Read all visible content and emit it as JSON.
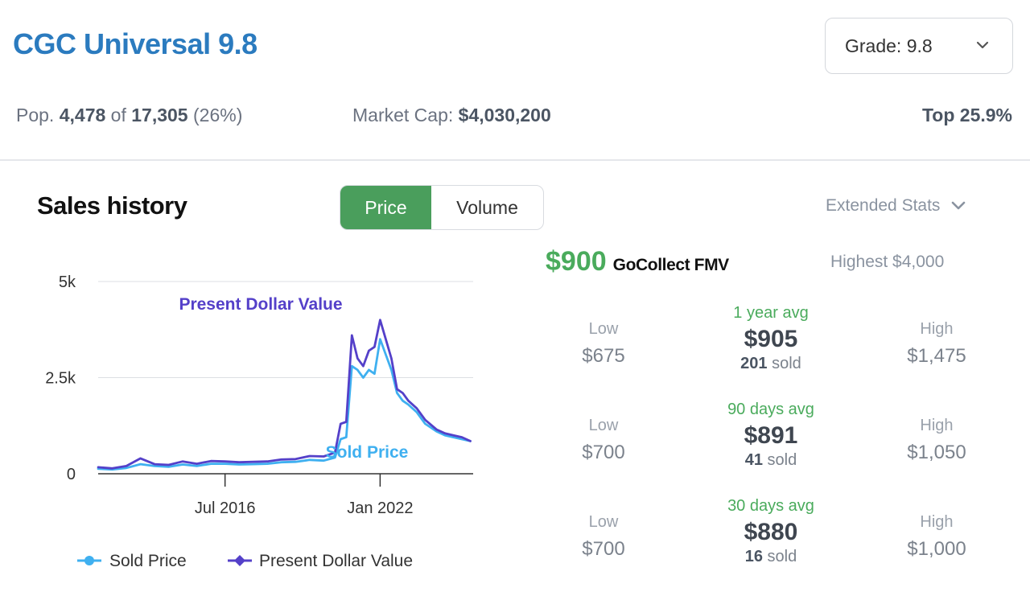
{
  "header": {
    "title": "CGC Universal 9.8",
    "grade_select": "Grade: 9.8"
  },
  "stats": {
    "pop_label": "Pop.",
    "pop_count": "4,478",
    "pop_of": "of",
    "pop_total": "17,305",
    "pop_pct": "(26%)",
    "market_cap_label": "Market Cap:",
    "market_cap_value": "$4,030,200",
    "top": "Top 25.9%"
  },
  "sales": {
    "title": "Sales history",
    "toggle": {
      "price": "Price",
      "volume": "Volume",
      "active": "Price"
    },
    "extended_stats": "Extended Stats"
  },
  "fmv": {
    "value": "$900",
    "label": "GoCollect FMV",
    "highest": "Highest $4,000"
  },
  "periods": [
    {
      "low_label": "Low",
      "low": "$675",
      "avg_label": "1 year avg",
      "avg": "$905",
      "sold_count": "201",
      "sold_word": "sold",
      "high_label": "High",
      "high": "$1,475"
    },
    {
      "low_label": "Low",
      "low": "$700",
      "avg_label": "90 days avg",
      "avg": "$891",
      "sold_count": "41",
      "sold_word": "sold",
      "high_label": "High",
      "high": "$1,050"
    },
    {
      "low_label": "Low",
      "low": "$700",
      "avg_label": "30 days avg",
      "avg": "$880",
      "sold_count": "16",
      "sold_word": "sold",
      "high_label": "High",
      "high": "$1,000"
    }
  ],
  "colors": {
    "sold_price": "#3fb0f0",
    "present_value": "#5440c9",
    "green": "#4aab5c",
    "title_blue": "#2b7bbf"
  },
  "chart_data": {
    "type": "line",
    "x_type": "year",
    "xlim": [
      2012.0,
      2025.3
    ],
    "ylim": [
      0,
      5000
    ],
    "y_ticks": [
      0,
      2500,
      5000
    ],
    "y_tick_labels": [
      "0",
      "2.5k",
      "5k"
    ],
    "x_ticks": [
      2016.5,
      2022.0
    ],
    "x_tick_labels": [
      "Jul 2016",
      "Jan 2022"
    ],
    "grid": "horizontal",
    "legend_position": "bottom",
    "annotations": [
      {
        "text": "Present Dollar Value",
        "series": "Present Dollar Value"
      },
      {
        "text": "Sold Price",
        "series": "Sold Price"
      }
    ],
    "series": [
      {
        "name": "Sold Price",
        "x": [
          2012.0,
          2012.5,
          2013.0,
          2013.5,
          2014.0,
          2014.5,
          2015.0,
          2015.5,
          2016.0,
          2016.5,
          2017.0,
          2017.5,
          2018.0,
          2018.5,
          2019.0,
          2019.5,
          2020.0,
          2020.4,
          2020.6,
          2020.8,
          2021.0,
          2021.2,
          2021.4,
          2021.6,
          2021.8,
          2022.0,
          2022.2,
          2022.4,
          2022.6,
          2022.8,
          2023.0,
          2023.3,
          2023.6,
          2024.0,
          2024.3,
          2024.6,
          2024.9,
          2025.2
        ],
        "values": [
          130,
          110,
          150,
          250,
          200,
          180,
          240,
          200,
          260,
          260,
          240,
          250,
          260,
          300,
          310,
          360,
          340,
          420,
          900,
          950,
          2800,
          2700,
          2500,
          2700,
          2600,
          3500,
          3100,
          2700,
          2100,
          1900,
          1800,
          1600,
          1300,
          1100,
          1000,
          950,
          900,
          850
        ]
      },
      {
        "name": "Present Dollar Value",
        "x": [
          2012.0,
          2012.5,
          2013.0,
          2013.5,
          2014.0,
          2014.5,
          2015.0,
          2015.5,
          2016.0,
          2016.5,
          2017.0,
          2017.5,
          2018.0,
          2018.5,
          2019.0,
          2019.5,
          2020.0,
          2020.4,
          2020.6,
          2020.8,
          2021.0,
          2021.2,
          2021.4,
          2021.6,
          2021.8,
          2022.0,
          2022.2,
          2022.4,
          2022.6,
          2022.8,
          2023.0,
          2023.3,
          2023.6,
          2024.0,
          2024.3,
          2024.6,
          2024.9,
          2025.2
        ],
        "values": [
          170,
          140,
          200,
          400,
          250,
          230,
          320,
          260,
          330,
          320,
          300,
          310,
          320,
          370,
          380,
          460,
          450,
          550,
          1300,
          1350,
          3600,
          3000,
          2800,
          3200,
          3300,
          4000,
          3500,
          3000,
          2200,
          2100,
          1900,
          1700,
          1400,
          1150,
          1050,
          1000,
          950,
          850
        ]
      }
    ]
  }
}
